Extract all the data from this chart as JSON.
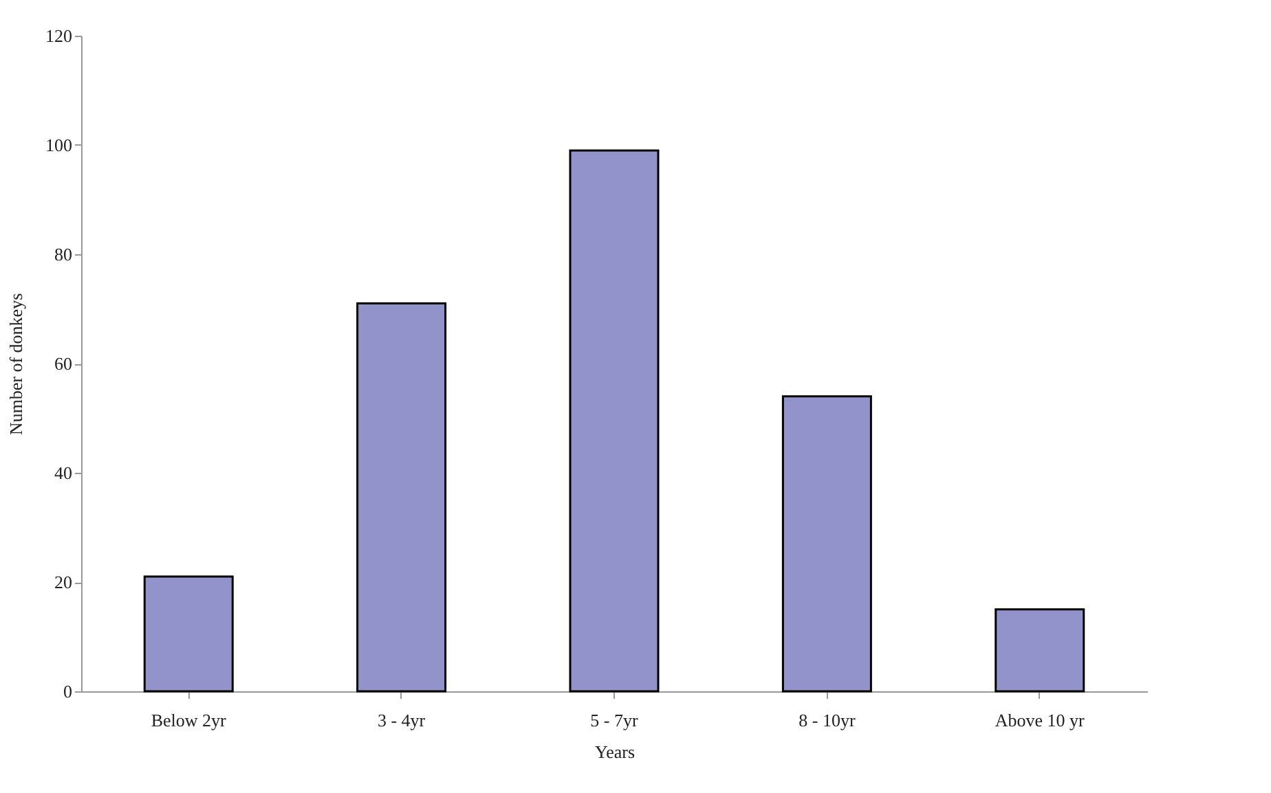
{
  "chart_data": {
    "type": "bar",
    "xlabel": "Years",
    "ylabel": "Number of donkeys",
    "categories": [
      "Below 2yr",
      "3 - 4yr",
      "5 - 7yr",
      "8 - 10yr",
      "Above 10 yr"
    ],
    "values": [
      21,
      71,
      99,
      54,
      15
    ],
    "color": "#9393cc",
    "ylim": [
      0,
      120
    ],
    "yticks": [
      0,
      20,
      40,
      60,
      80,
      100,
      120
    ],
    "grid": false
  }
}
